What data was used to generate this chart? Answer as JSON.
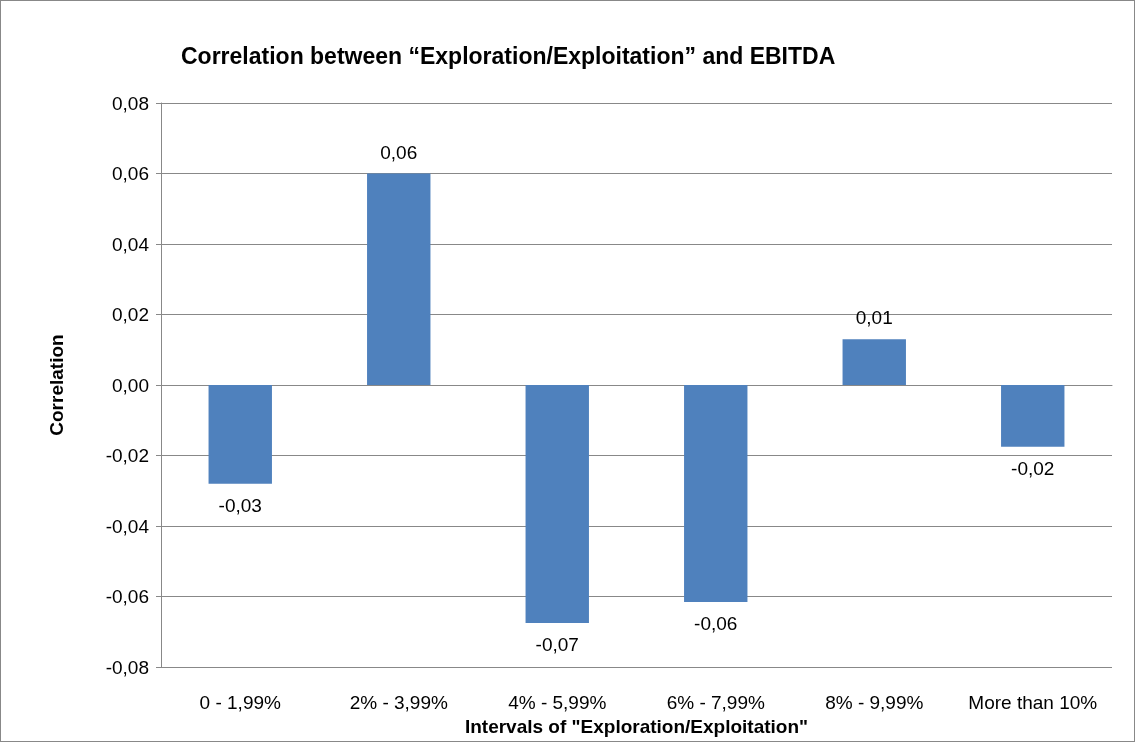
{
  "chart_data": {
    "type": "bar",
    "title": "Correlation between “Exploration/Exploitation” and EBITDA",
    "xlabel": "Intervals of \"Exploration/Exploitation\"",
    "ylabel": "Correlation",
    "categories": [
      "0 - 1,99%",
      "2% - 3,99%",
      "4% - 5,99%",
      "6% - 7,99%",
      "8% - 9,99%",
      "More than 10%"
    ],
    "values": [
      -0.028,
      0.06,
      -0.0675,
      -0.0615,
      0.013,
      -0.0175
    ],
    "value_labels": [
      "-0,03",
      "0,06",
      "-0,07",
      "-0,06",
      "0,01",
      "-0,02"
    ],
    "color": "#4f81bd",
    "ylim": [
      -0.08,
      0.08
    ],
    "yticks": [
      {
        "value": -0.08,
        "label": "-0,08"
      },
      {
        "value": -0.06,
        "label": "-0,06"
      },
      {
        "value": -0.04,
        "label": "-0,04"
      },
      {
        "value": -0.02,
        "label": "-0,02"
      },
      {
        "value": 0,
        "label": "0,00"
      },
      {
        "value": 0.02,
        "label": "0,02"
      },
      {
        "value": 0.04,
        "label": "0,04"
      },
      {
        "value": 0.06,
        "label": "0,06"
      },
      {
        "value": 0.08,
        "label": "0,08"
      }
    ],
    "grid": "y"
  }
}
